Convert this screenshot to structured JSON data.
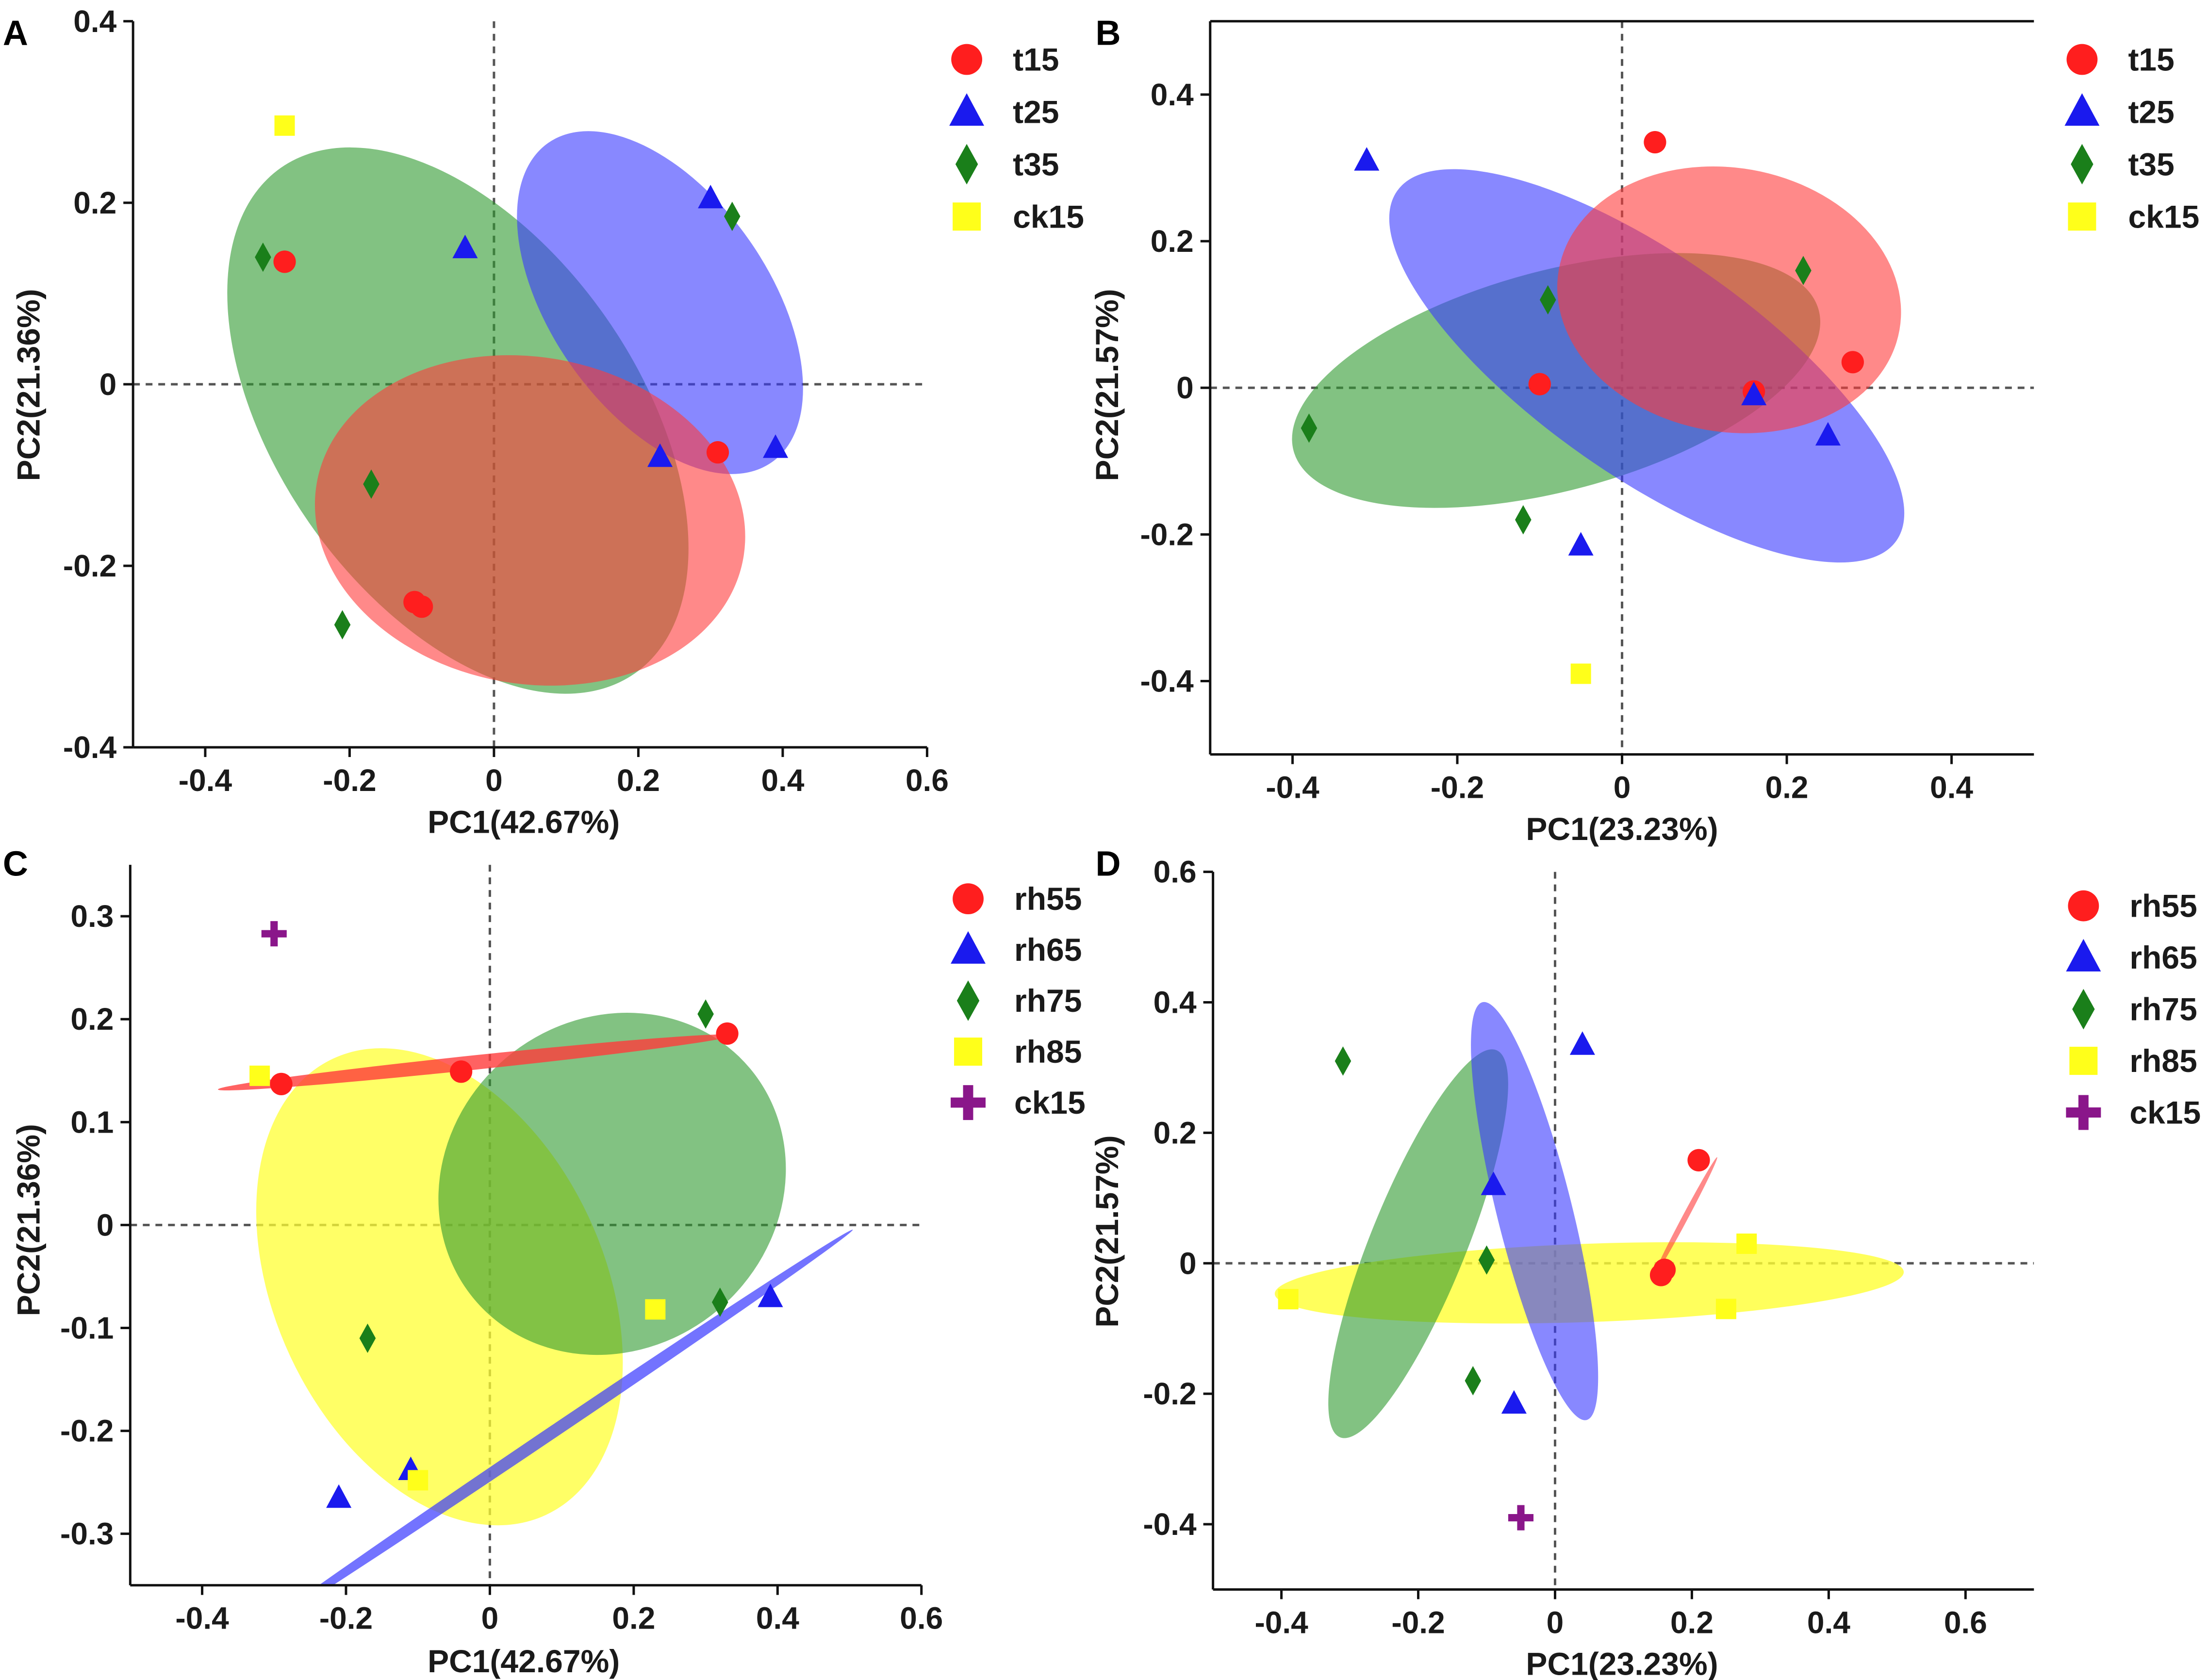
{
  "figure": {
    "colors": {
      "red": "#ff1e1e",
      "blue": "#1a1aee",
      "green": "#1a7f1a",
      "yellow": "#ffff1a",
      "purple": "#8a168a",
      "ellipse_red": "#ff3b3b",
      "ellipse_blue": "#3838ff",
      "ellipse_green": "#2e9a2e",
      "ellipse_yellow": "#ffff33"
    }
  },
  "chart_data": [
    {
      "panel": "A",
      "type": "scatter",
      "xlabel": "PC1(42.67%)",
      "ylabel": "PC2(21.36%)",
      "xlim": [
        -0.5,
        0.6
      ],
      "ylim": [
        -0.4,
        0.4
      ],
      "xticks": [
        -0.4,
        -0.2,
        0,
        0.2,
        0.4,
        0.6
      ],
      "xtick_labels": [
        "-0.4",
        "-0.2",
        "0",
        "0.2",
        "0.4",
        "0.6"
      ],
      "yticks": [
        -0.4,
        -0.2,
        0,
        0.2,
        0.4
      ],
      "ytick_labels": [
        "-0.4",
        "-0.2",
        "0",
        "0.2",
        "0.4"
      ],
      "legend": [
        {
          "label": "t15",
          "marker": "circle",
          "color": "red"
        },
        {
          "label": "t25",
          "marker": "triangle",
          "color": "blue"
        },
        {
          "label": "t35",
          "marker": "diamond",
          "color": "green"
        },
        {
          "label": "ck15",
          "marker": "square",
          "color": "yellow"
        }
      ],
      "ellipses": [
        {
          "group": "t35",
          "color": "ellipse_green",
          "cx": -0.05,
          "cy": -0.04,
          "rx": 0.25,
          "ry": 0.34,
          "angle": 35,
          "opacity": 0.6
        },
        {
          "group": "t25",
          "color": "ellipse_blue",
          "cx": 0.23,
          "cy": 0.09,
          "rx": 0.27,
          "ry": 0.12,
          "angle": -55,
          "opacity": 0.6
        },
        {
          "group": "t15",
          "color": "ellipse_red",
          "cx": 0.05,
          "cy": -0.15,
          "rx": 0.3,
          "ry": 0.18,
          "angle": -10,
          "opacity": 0.6
        }
      ],
      "series": [
        {
          "name": "t15",
          "marker": "circle",
          "color": "red",
          "x": [
            -0.29,
            0.31,
            -0.11,
            -0.1
          ],
          "y": [
            0.135,
            -0.075,
            -0.24,
            -0.245
          ]
        },
        {
          "name": "t25",
          "marker": "triangle",
          "color": "blue",
          "x": [
            -0.04,
            0.3,
            0.23,
            0.39
          ],
          "y": [
            0.15,
            0.205,
            -0.08,
            -0.07
          ]
        },
        {
          "name": "t35",
          "marker": "diamond",
          "color": "green",
          "x": [
            -0.32,
            0.33,
            -0.17,
            -0.21
          ],
          "y": [
            0.14,
            0.185,
            -0.11,
            -0.265
          ]
        },
        {
          "name": "ck15",
          "marker": "square",
          "color": "yellow",
          "x": [
            -0.29
          ],
          "y": [
            0.285
          ]
        }
      ]
    },
    {
      "panel": "B",
      "type": "scatter",
      "xlabel": "PC1(23.23%)",
      "ylabel": "PC2(21.57%)",
      "xlim": [
        -0.5,
        0.5
      ],
      "ylim": [
        -0.5,
        0.5
      ],
      "xticks": [
        -0.4,
        -0.2,
        0,
        0.2,
        0.4
      ],
      "xtick_labels": [
        "-0.4",
        "-0.2",
        "0",
        "0.2",
        "0.4"
      ],
      "yticks": [
        -0.4,
        -0.2,
        0,
        0.2,
        0.4
      ],
      "ytick_labels": [
        "-0.4",
        "-0.2",
        "0",
        "0.2",
        "0.4"
      ],
      "legend": [
        {
          "label": "t15",
          "marker": "circle",
          "color": "red"
        },
        {
          "label": "t25",
          "marker": "triangle",
          "color": "blue"
        },
        {
          "label": "t35",
          "marker": "diamond",
          "color": "green"
        },
        {
          "label": "ck15",
          "marker": "square",
          "color": "yellow"
        }
      ],
      "ellipses": [
        {
          "group": "t35",
          "color": "ellipse_green",
          "cx": -0.08,
          "cy": 0.01,
          "rx": 0.33,
          "ry": 0.15,
          "angle": 15,
          "opacity": 0.6
        },
        {
          "group": "t25",
          "color": "ellipse_blue",
          "cx": 0.03,
          "cy": 0.03,
          "rx": 0.37,
          "ry": 0.15,
          "angle": -35,
          "opacity": 0.6
        },
        {
          "group": "t15",
          "color": "ellipse_red",
          "cx": 0.13,
          "cy": 0.12,
          "rx": 0.21,
          "ry": 0.18,
          "angle": -10,
          "opacity": 0.6
        }
      ],
      "series": [
        {
          "name": "t15",
          "marker": "circle",
          "color": "red",
          "x": [
            0.04,
            -0.1,
            0.28,
            0.16
          ],
          "y": [
            0.335,
            0.005,
            0.035,
            -0.005
          ]
        },
        {
          "name": "t25",
          "marker": "triangle",
          "color": "blue",
          "x": [
            -0.31,
            0.16,
            0.25,
            -0.05
          ],
          "y": [
            0.31,
            -0.01,
            -0.065,
            -0.215
          ]
        },
        {
          "name": "t35",
          "marker": "diamond",
          "color": "green",
          "x": [
            0.22,
            -0.09,
            -0.38,
            -0.12
          ],
          "y": [
            0.16,
            0.12,
            -0.055,
            -0.18
          ]
        },
        {
          "name": "ck15",
          "marker": "square",
          "color": "yellow",
          "x": [
            -0.05
          ],
          "y": [
            -0.39
          ]
        }
      ]
    },
    {
      "panel": "C",
      "type": "scatter",
      "xlabel": "PC1(42.67%)",
      "ylabel": "PC2(21.36%)",
      "xlim": [
        -0.5,
        0.6
      ],
      "ylim": [
        -0.35,
        0.35
      ],
      "xticks": [
        -0.4,
        -0.2,
        0,
        0.2,
        0.4,
        0.6
      ],
      "xtick_labels": [
        "-0.4",
        "-0.2",
        "0",
        "0.2",
        "0.4",
        "0.6"
      ],
      "yticks": [
        -0.3,
        -0.2,
        -0.1,
        0,
        0.1,
        0.2,
        0.3
      ],
      "ytick_labels": [
        "-0.3",
        "-0.2",
        "-0.1",
        "0",
        "0.1",
        "0.2",
        "0.3"
      ],
      "legend": [
        {
          "label": "rh55",
          "marker": "circle",
          "color": "red"
        },
        {
          "label": "rh65",
          "marker": "triangle",
          "color": "blue"
        },
        {
          "label": "rh75",
          "marker": "diamond",
          "color": "green"
        },
        {
          "label": "rh85",
          "marker": "square",
          "color": "yellow"
        },
        {
          "label": "ck15",
          "marker": "plus",
          "color": "purple"
        }
      ],
      "ellipses": [
        {
          "group": "rh85",
          "color": "ellipse_yellow",
          "cx": -0.07,
          "cy": -0.06,
          "rx": 0.35,
          "ry": 0.16,
          "angle": -65,
          "opacity": 0.75
        },
        {
          "group": "rh75",
          "color": "ellipse_green",
          "cx": 0.17,
          "cy": 0.04,
          "rx": 0.25,
          "ry": 0.16,
          "angle": 40,
          "opacity": 0.6
        },
        {
          "group": "rh55",
          "color": "ellipse_red",
          "cx": -0.02,
          "cy": 0.158,
          "rx": 0.36,
          "ry": 0.007,
          "angle": 6,
          "opacity": 0.8
        },
        {
          "group": "rh65",
          "color": "ellipse_blue",
          "cx": 0.09,
          "cy": -0.2,
          "rx": 0.5,
          "ry": 0.006,
          "angle": 34,
          "opacity": 0.7
        }
      ],
      "series": [
        {
          "name": "rh55",
          "marker": "circle",
          "color": "red",
          "x": [
            -0.29,
            -0.04,
            0.33
          ],
          "y": [
            0.137,
            0.149,
            0.186
          ]
        },
        {
          "name": "rh65",
          "marker": "triangle",
          "color": "blue",
          "x": [
            -0.21,
            -0.11,
            0.39
          ],
          "y": [
            -0.265,
            -0.238,
            -0.07
          ]
        },
        {
          "name": "rh75",
          "marker": "diamond",
          "color": "green",
          "x": [
            0.3,
            -0.17,
            0.32
          ],
          "y": [
            0.205,
            -0.11,
            -0.075
          ]
        },
        {
          "name": "rh85",
          "marker": "square",
          "color": "yellow",
          "x": [
            -0.32,
            0.23,
            -0.1
          ],
          "y": [
            0.145,
            -0.082,
            -0.248
          ]
        },
        {
          "name": "ck15",
          "marker": "plus",
          "color": "purple",
          "x": [
            -0.3
          ],
          "y": [
            0.283
          ]
        }
      ]
    },
    {
      "panel": "D",
      "type": "scatter",
      "xlabel": "PC1(23.23%)",
      "ylabel": "PC2(21.57%)",
      "xlim": [
        -0.5,
        0.7
      ],
      "ylim": [
        -0.5,
        0.6
      ],
      "xticks": [
        -0.4,
        -0.2,
        0,
        0.2,
        0.4,
        0.6
      ],
      "xtick_labels": [
        "-0.4",
        "-0.2",
        "0",
        "0.2",
        "0.4",
        "0.6"
      ],
      "yticks": [
        -0.4,
        -0.2,
        0,
        0.2,
        0.4,
        0.6
      ],
      "ytick_labels": [
        "-0.4",
        "-0.2",
        "0",
        "0.2",
        "0.4",
        "0.6"
      ],
      "legend": [
        {
          "label": "rh55",
          "marker": "circle",
          "color": "red"
        },
        {
          "label": "rh65",
          "marker": "triangle",
          "color": "blue"
        },
        {
          "label": "rh75",
          "marker": "diamond",
          "color": "green"
        },
        {
          "label": "rh85",
          "marker": "square",
          "color": "yellow"
        },
        {
          "label": "ck15",
          "marker": "plus",
          "color": "purple"
        }
      ],
      "ellipses": [
        {
          "group": "rh85",
          "color": "ellipse_yellow",
          "cx": 0.05,
          "cy": -0.03,
          "rx": 0.46,
          "ry": 0.06,
          "angle": 2,
          "opacity": 0.8
        },
        {
          "group": "rh75",
          "color": "ellipse_green",
          "cx": -0.2,
          "cy": 0.03,
          "rx": 0.07,
          "ry": 0.32,
          "angle": -22,
          "opacity": 0.6
        },
        {
          "group": "rh65",
          "color": "ellipse_blue",
          "cx": -0.03,
          "cy": 0.08,
          "rx": 0.055,
          "ry": 0.33,
          "angle": 14,
          "opacity": 0.6
        },
        {
          "group": "rh55",
          "color": "ellipse_red",
          "cx": 0.19,
          "cy": 0.07,
          "rx": 0.1,
          "ry": 0.003,
          "angle": 62,
          "opacity": 0.6
        }
      ],
      "series": [
        {
          "name": "rh55",
          "marker": "circle",
          "color": "red",
          "x": [
            0.21,
            0.16,
            0.155
          ],
          "y": [
            0.158,
            -0.01,
            -0.018
          ]
        },
        {
          "name": "rh65",
          "marker": "triangle",
          "color": "blue",
          "x": [
            0.04,
            -0.09,
            -0.06
          ],
          "y": [
            0.335,
            0.12,
            -0.215
          ]
        },
        {
          "name": "rh75",
          "marker": "diamond",
          "color": "green",
          "x": [
            -0.31,
            -0.1,
            -0.12
          ],
          "y": [
            0.31,
            0.005,
            -0.18
          ]
        },
        {
          "name": "rh85",
          "marker": "square",
          "color": "yellow",
          "x": [
            -0.39,
            0.28,
            0.25
          ],
          "y": [
            -0.055,
            0.03,
            -0.07
          ]
        },
        {
          "name": "ck15",
          "marker": "plus",
          "color": "purple",
          "x": [
            -0.05
          ],
          "y": [
            -0.39
          ]
        }
      ]
    }
  ]
}
